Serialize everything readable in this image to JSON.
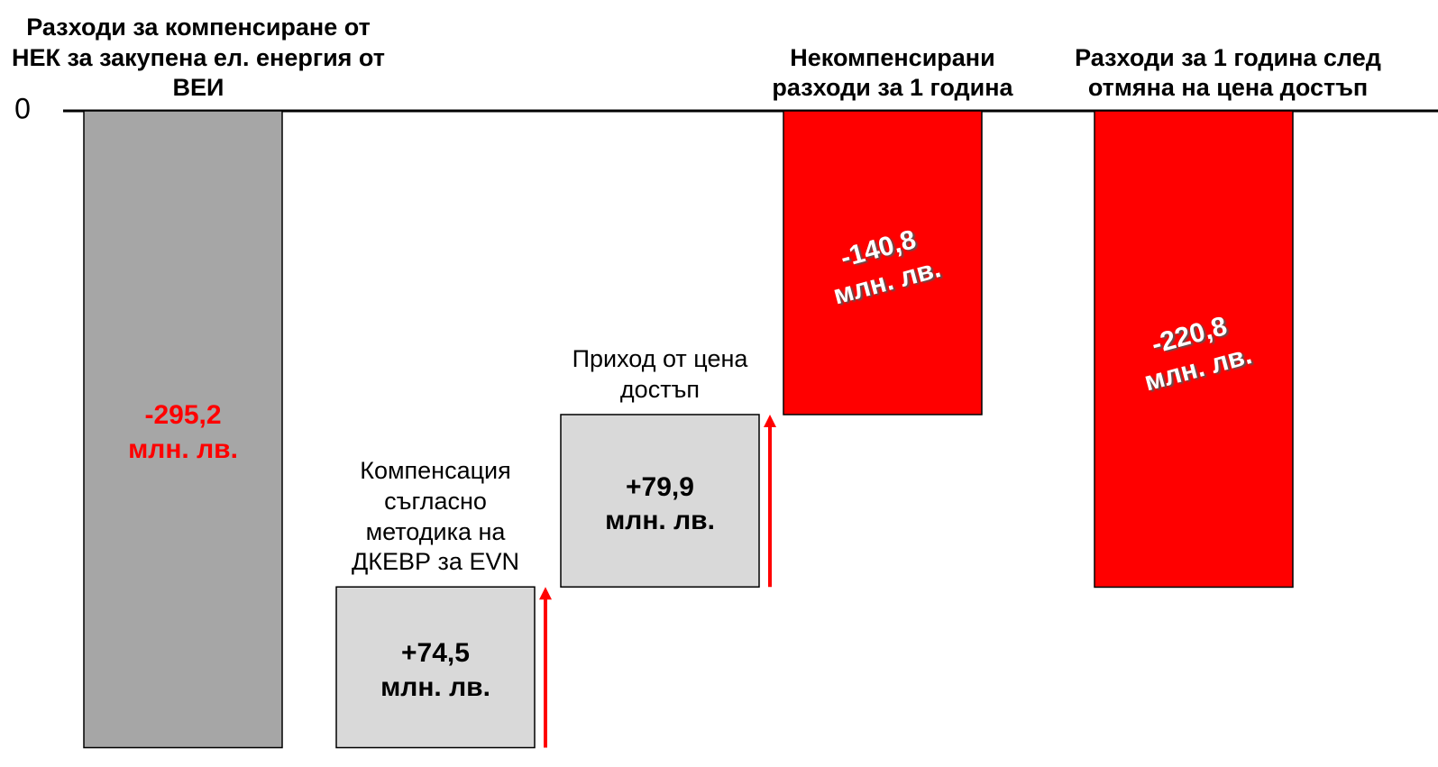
{
  "chart_data": {
    "type": "waterfall",
    "categories": [
      "Разходи за компенсиране от НЕК за закупена ел. енергия от ВЕИ",
      "Компенсация съгласно методика на ДКЕВР за EVN",
      "Приход от цена достъп",
      "Некомпенсирани разходи за 1 година",
      "Разходи за 1 година след отмяна на цена достъп"
    ],
    "values": [
      -295.2,
      74.5,
      79.9,
      -140.8,
      -220.8
    ],
    "value_labels": [
      "-295,2",
      "+74,5",
      "+79,9",
      "-140,8",
      "-220,8"
    ],
    "unit_label": "млн. лв.",
    "measure": [
      "absolute",
      "relative",
      "relative",
      "absolute",
      "absolute"
    ],
    "colors": [
      "#a6a6a6",
      "#d9d9d9",
      "#d9d9d9",
      "#ff0000",
      "#ff0000"
    ],
    "ylim": [
      -300,
      0
    ],
    "yticks": [
      0
    ]
  }
}
